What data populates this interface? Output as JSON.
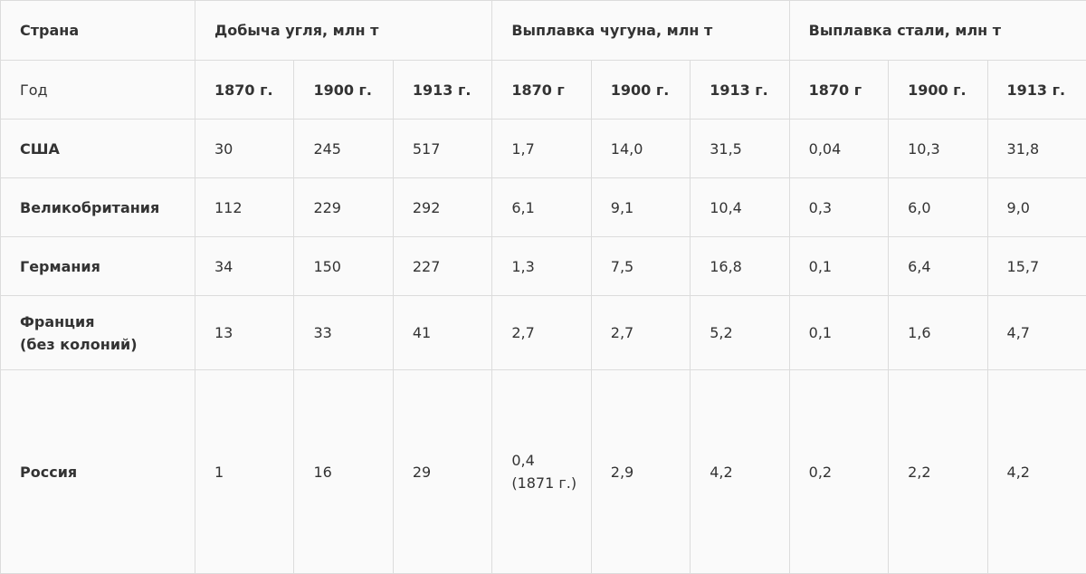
{
  "table": {
    "header": [
      "Страна",
      "Добыча угля, млн т",
      "Выплавка чугуна, млн т",
      "Выплавка стали, млн т"
    ],
    "years": {
      "label": "Год",
      "values": [
        "1870 г.",
        "1900 г.",
        "1913 г.",
        "1870 г",
        "1900 г.",
        "1913 г.",
        "1870 г",
        "1900 г.",
        "1913 г."
      ]
    },
    "rows": [
      {
        "country": "США",
        "values": [
          "30",
          "245",
          "517",
          "1,7",
          "14,0",
          "31,5",
          "0,04",
          "10,3",
          "31,8"
        ]
      },
      {
        "country": "Великобритания",
        "values": [
          "112",
          "229",
          "292",
          "6,1",
          "9,1",
          "10,4",
          "0,3",
          "6,0",
          "9,0"
        ]
      },
      {
        "country": "Германия",
        "values": [
          "34",
          "150",
          "227",
          "1,3",
          "7,5",
          "16,8",
          "0,1",
          "6,4",
          "15,7"
        ]
      },
      {
        "country": "Франция\n(без колоний)",
        "values": [
          "13",
          "33",
          "41",
          "2,7",
          "2,7",
          "5,2",
          "0,1",
          "1,6",
          "4,7"
        ]
      },
      {
        "country": "Россия",
        "values": [
          "1",
          "16",
          "29",
          "0,4\n(1871 г.)",
          "2,9",
          "4,2",
          "0,2",
          "2,2",
          "4,2"
        ]
      }
    ]
  }
}
